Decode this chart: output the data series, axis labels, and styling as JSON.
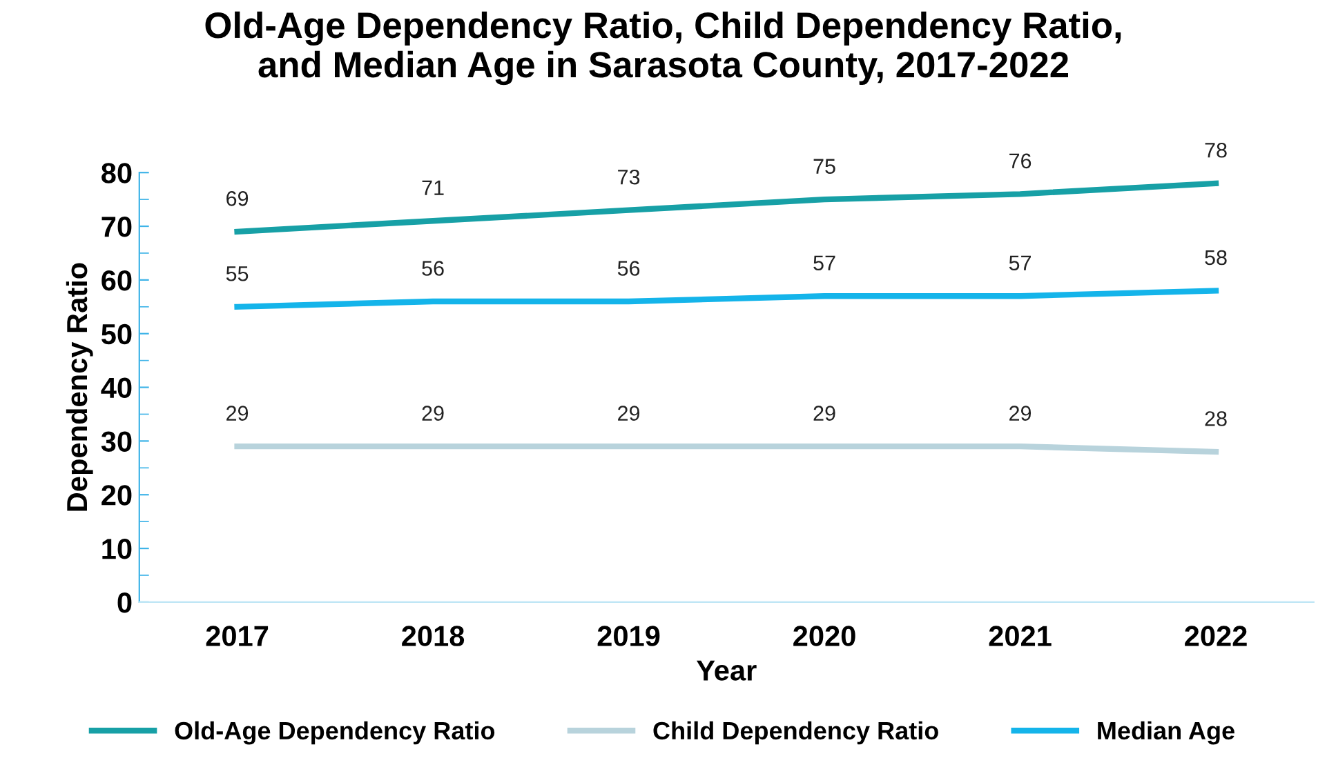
{
  "chart_data": {
    "type": "line",
    "title": "Old-Age Dependency Ratio, Child Dependency Ratio,\nand Median Age in Sarasota County, 2017-2022",
    "xlabel": "Year",
    "ylabel": "Dependency Ratio",
    "categories": [
      "2017",
      "2018",
      "2019",
      "2020",
      "2021",
      "2022"
    ],
    "series": [
      {
        "name": "Old-Age Dependency Ratio",
        "color": "#17a0a6",
        "values": [
          69,
          71,
          73,
          75,
          76,
          78
        ]
      },
      {
        "name": "Child Dependency Ratio",
        "color": "#b8d3dc",
        "values": [
          29,
          29,
          29,
          29,
          29,
          28
        ]
      },
      {
        "name": "Median Age",
        "color": "#14b4ea",
        "values": [
          55,
          56,
          56,
          57,
          57,
          58
        ]
      }
    ],
    "ylim": [
      0,
      80
    ],
    "yticks": [
      0,
      10,
      20,
      30,
      40,
      50,
      60,
      70,
      80
    ],
    "data_labels": true,
    "legend": "bottom",
    "grid": false,
    "marker": "none",
    "line_style": "solid"
  }
}
